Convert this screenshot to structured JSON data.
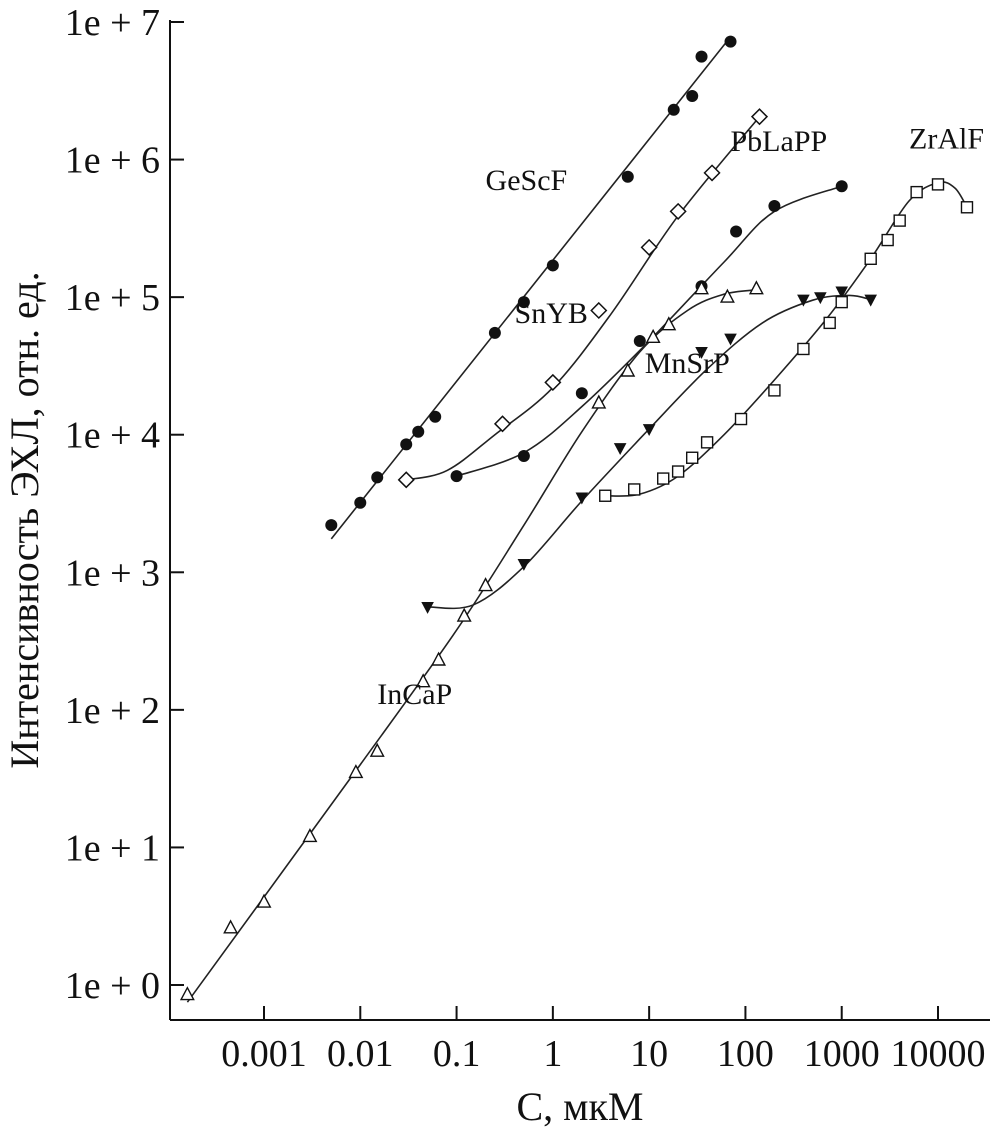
{
  "chart_data": {
    "type": "scatter",
    "title": "",
    "xlabel": "C, мкМ",
    "ylabel": "Интенсивность ЭХЛ, отн. ед.",
    "x_scale": "log",
    "y_scale": "log",
    "xlim": [
      0.00014,
      60000
    ],
    "ylim": [
      1,
      10000000
    ],
    "x_ticks": [
      {
        "value": 0.001,
        "label": "0.001"
      },
      {
        "value": 0.01,
        "label": "0.01"
      },
      {
        "value": 0.1,
        "label": "0.1"
      },
      {
        "value": 1,
        "label": "1"
      },
      {
        "value": 10,
        "label": "10"
      },
      {
        "value": 100,
        "label": "100"
      },
      {
        "value": 1000,
        "label": "1000"
      },
      {
        "value": 10000,
        "label": "10000"
      }
    ],
    "y_ticks": [
      {
        "value": 1,
        "label": "1e + 0"
      },
      {
        "value": 10,
        "label": "1e + 1"
      },
      {
        "value": 100,
        "label": "1e + 2"
      },
      {
        "value": 1000,
        "label": "1e + 3"
      },
      {
        "value": 10000,
        "label": "1e + 4"
      },
      {
        "value": 100000,
        "label": "1e + 5"
      },
      {
        "value": 1000000,
        "label": "1e + 6"
      },
      {
        "value": 10000000,
        "label": "1e + 7"
      }
    ],
    "series": [
      {
        "name": "GeScF",
        "marker": "filled-circle",
        "points": [
          [
            0.005,
            2200
          ],
          [
            0.01,
            3200
          ],
          [
            0.015,
            4900
          ],
          [
            0.03,
            8500
          ],
          [
            0.04,
            10500
          ],
          [
            0.06,
            13500
          ],
          [
            0.25,
            55000
          ],
          [
            0.5,
            92000
          ],
          [
            1.0,
            170000
          ],
          [
            6.0,
            750000
          ],
          [
            18.0,
            2300000
          ],
          [
            28.0,
            2900000
          ],
          [
            35.0,
            5600000
          ],
          [
            70.0,
            7200000
          ]
        ],
        "curve": [
          [
            0.005,
            1750
          ],
          [
            70.0,
            7800000
          ]
        ]
      },
      {
        "name": "SnYB",
        "marker": "open-diamond",
        "points": [
          [
            0.03,
            4700
          ],
          [
            0.3,
            12000
          ],
          [
            1.0,
            24000
          ],
          [
            3.0,
            80000
          ],
          [
            10.0,
            230000
          ],
          [
            20.0,
            420000
          ],
          [
            45.0,
            800000
          ],
          [
            140.0,
            2050000
          ]
        ],
        "curve": [
          [
            0.03,
            4700
          ],
          [
            0.08,
            5500
          ],
          [
            0.25,
            10000
          ],
          [
            1.0,
            22000
          ],
          [
            4.0,
            75000
          ],
          [
            20.0,
            390000
          ],
          [
            140.0,
            2050000
          ]
        ]
      },
      {
        "name": "PbLaPP",
        "marker": "filled-circle",
        "points": [
          [
            0.1,
            5000
          ],
          [
            0.5,
            7000
          ],
          [
            2.0,
            20000
          ],
          [
            8.0,
            48000
          ],
          [
            35.0,
            120000
          ],
          [
            80.0,
            300000
          ],
          [
            200.0,
            460000
          ],
          [
            1000.0,
            640000
          ]
        ],
        "curve": [
          [
            0.1,
            5000
          ],
          [
            0.5,
            7400
          ],
          [
            2.0,
            16000
          ],
          [
            10.0,
            48000
          ],
          [
            60.0,
            180000
          ],
          [
            200.0,
            420000
          ],
          [
            1000.0,
            640000
          ]
        ]
      },
      {
        "name": "InCaP",
        "marker": "open-triangle",
        "points": [
          [
            0.00016,
            0.85
          ],
          [
            0.00045,
            2.6
          ],
          [
            0.001,
            4.0
          ],
          [
            0.003,
            12
          ],
          [
            0.009,
            35
          ],
          [
            0.015,
            50
          ],
          [
            0.045,
            160
          ],
          [
            0.065,
            230
          ],
          [
            0.12,
            480
          ],
          [
            0.2,
            800
          ],
          [
            3.0,
            17000
          ],
          [
            6.0,
            29000
          ],
          [
            11.0,
            51000
          ],
          [
            16.0,
            63000
          ],
          [
            35.0,
            115000
          ],
          [
            65.0,
            100000
          ],
          [
            130.0,
            115000
          ]
        ],
        "curve": [
          [
            0.00016,
            0.75
          ],
          [
            0.01,
            40
          ],
          [
            0.1,
            380
          ],
          [
            0.5,
            2200
          ],
          [
            2.0,
            10500
          ],
          [
            8.0,
            40000
          ],
          [
            25.0,
            80000
          ],
          [
            60.0,
            105000
          ],
          [
            130.0,
            113000
          ]
        ]
      },
      {
        "name": "MnSrP",
        "marker": "filled-triangle-down",
        "points": [
          [
            0.05,
            560
          ],
          [
            0.5,
            1150
          ],
          [
            2.0,
            3500
          ],
          [
            5.0,
            8000
          ],
          [
            10.0,
            11000
          ],
          [
            35.0,
            40000
          ],
          [
            70.0,
            50000
          ],
          [
            400.0,
            96000
          ],
          [
            600.0,
            100000
          ],
          [
            1000.0,
            110000
          ],
          [
            2000.0,
            96000
          ]
        ],
        "curve": [
          [
            0.05,
            560
          ],
          [
            0.15,
            580
          ],
          [
            0.5,
            1100
          ],
          [
            2.0,
            3300
          ],
          [
            10.0,
            11000
          ],
          [
            40.0,
            30000
          ],
          [
            150.0,
            65000
          ],
          [
            500.0,
            95000
          ],
          [
            1200.0,
            103000
          ],
          [
            2000.0,
            96000
          ]
        ]
      },
      {
        "name": "ZrAlF",
        "marker": "open-square",
        "points": [
          [
            3.5,
            3600
          ],
          [
            7.0,
            4000
          ],
          [
            14.0,
            4800
          ],
          [
            20.0,
            5400
          ],
          [
            28.0,
            6800
          ],
          [
            40.0,
            8800
          ],
          [
            90.0,
            13000
          ],
          [
            200.0,
            21000
          ],
          [
            400.0,
            42000
          ],
          [
            750.0,
            65000
          ],
          [
            1000.0,
            92000
          ],
          [
            2000.0,
            190000
          ],
          [
            3000.0,
            260000
          ],
          [
            4000.0,
            360000
          ],
          [
            6000.0,
            580000
          ],
          [
            10000.0,
            660000
          ],
          [
            20000.0,
            450000
          ]
        ],
        "curve": [
          [
            3.5,
            3600
          ],
          [
            8.0,
            3700
          ],
          [
            20.0,
            5000
          ],
          [
            60.0,
            10000
          ],
          [
            200.0,
            25000
          ],
          [
            700.0,
            70000
          ],
          [
            2000.0,
            190000
          ],
          [
            5000.0,
            500000
          ],
          [
            10000.0,
            680000
          ],
          [
            15000.0,
            620000
          ],
          [
            20000.0,
            450000
          ]
        ]
      }
    ],
    "annotations": [
      {
        "text": "GeScF",
        "x": 0.2,
        "y": 600000
      },
      {
        "text": "SnYB",
        "x": 0.4,
        "y": 65000
      },
      {
        "text": "PbLaPP",
        "x": 70,
        "y": 1150000
      },
      {
        "text": "ZrAlF",
        "x": 5000,
        "y": 1200000
      },
      {
        "text": "MnSrP",
        "x": 9,
        "y": 28000
      },
      {
        "text": "InCaP",
        "x": 0.015,
        "y": 110
      }
    ]
  }
}
